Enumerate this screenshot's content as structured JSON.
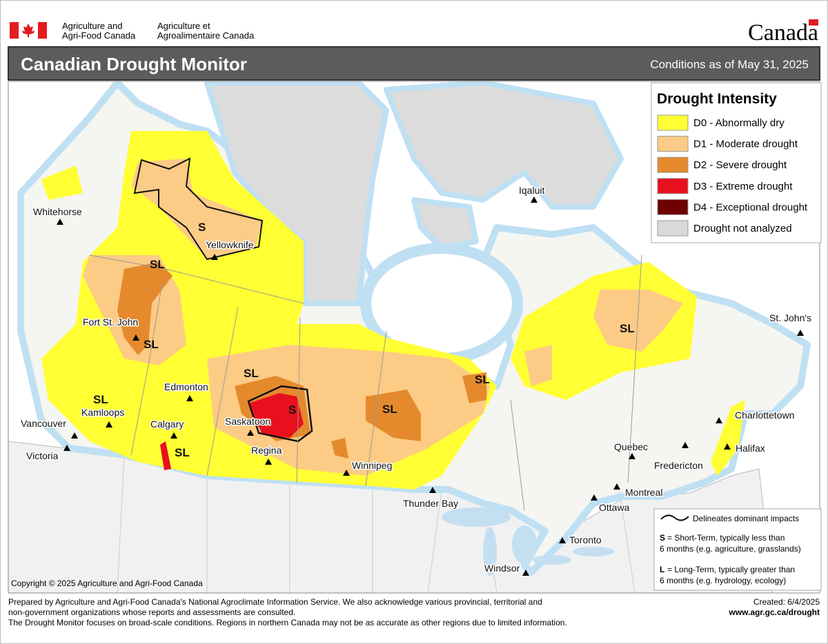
{
  "header": {
    "agency_en": [
      "Agriculture and",
      "Agri-Food Canada"
    ],
    "agency_fr": [
      "Agriculture et",
      "Agroalimentaire Canada"
    ],
    "wordmark": "Canada"
  },
  "title": "Canadian Drought Monitor",
  "conditions": "Conditions as of May 31, 2025",
  "legend": {
    "title": "Drought Intensity",
    "items": [
      {
        "label": "D0 - Abnormally dry",
        "color": "#ffff33"
      },
      {
        "label": "D1 - Moderate drought",
        "color": "#fccb85"
      },
      {
        "label": "D2 - Severe drought",
        "color": "#e58a2c"
      },
      {
        "label": "D3 - Extreme drought",
        "color": "#e8101e"
      },
      {
        "label": "D4 - Exceptional drought",
        "color": "#6e0000"
      },
      {
        "label": "Drought not analyzed",
        "color": "#d9d9d9"
      }
    ]
  },
  "cities": [
    "Whitehorse",
    "Yellowknife",
    "Iqaluit",
    "Fort St. John",
    "Edmonton",
    "Kamloops",
    "Vancouver",
    "Victoria",
    "Calgary",
    "Saskatoon",
    "Regina",
    "Winnipeg",
    "Thunder Bay",
    "Quebec",
    "Montreal",
    "Ottawa",
    "Toronto",
    "Windsor",
    "Fredericton",
    "Charlottetown",
    "Halifax",
    "St. John's"
  ],
  "impact_labels": [
    "S",
    "SL",
    "SL",
    "SL",
    "S",
    "SL",
    "SL",
    "SL",
    "SL",
    "SL"
  ],
  "impact_legend": {
    "line_label": "Delineates dominant impacts",
    "short_key": "S",
    "short_text": [
      "= Short-Term, typically less than",
      "6 months (e.g. agriculture, grasslands)"
    ],
    "long_key": "L",
    "long_text": [
      "= Long-Term, typically greater  than",
      "6 months (e.g. hydrology, ecology)"
    ]
  },
  "copyright": "Copyright © 2025 Agriculture and Agri-Food Canada",
  "footer": {
    "lines": [
      "Prepared by Agriculture and Agri-Food Canada's National Agroclimate Information Service.  We also acknowledge various provincial, territorial and",
      "non-government organizations whose reports and assessments are consulted.",
      "The Drought Monitor focuses on broad-scale conditions.  Regions in northern Canada may not be as accurate as other regions due to limited information."
    ],
    "created": "Created: 6/4/2025",
    "url": "www.agr.gc.ca/drought"
  }
}
